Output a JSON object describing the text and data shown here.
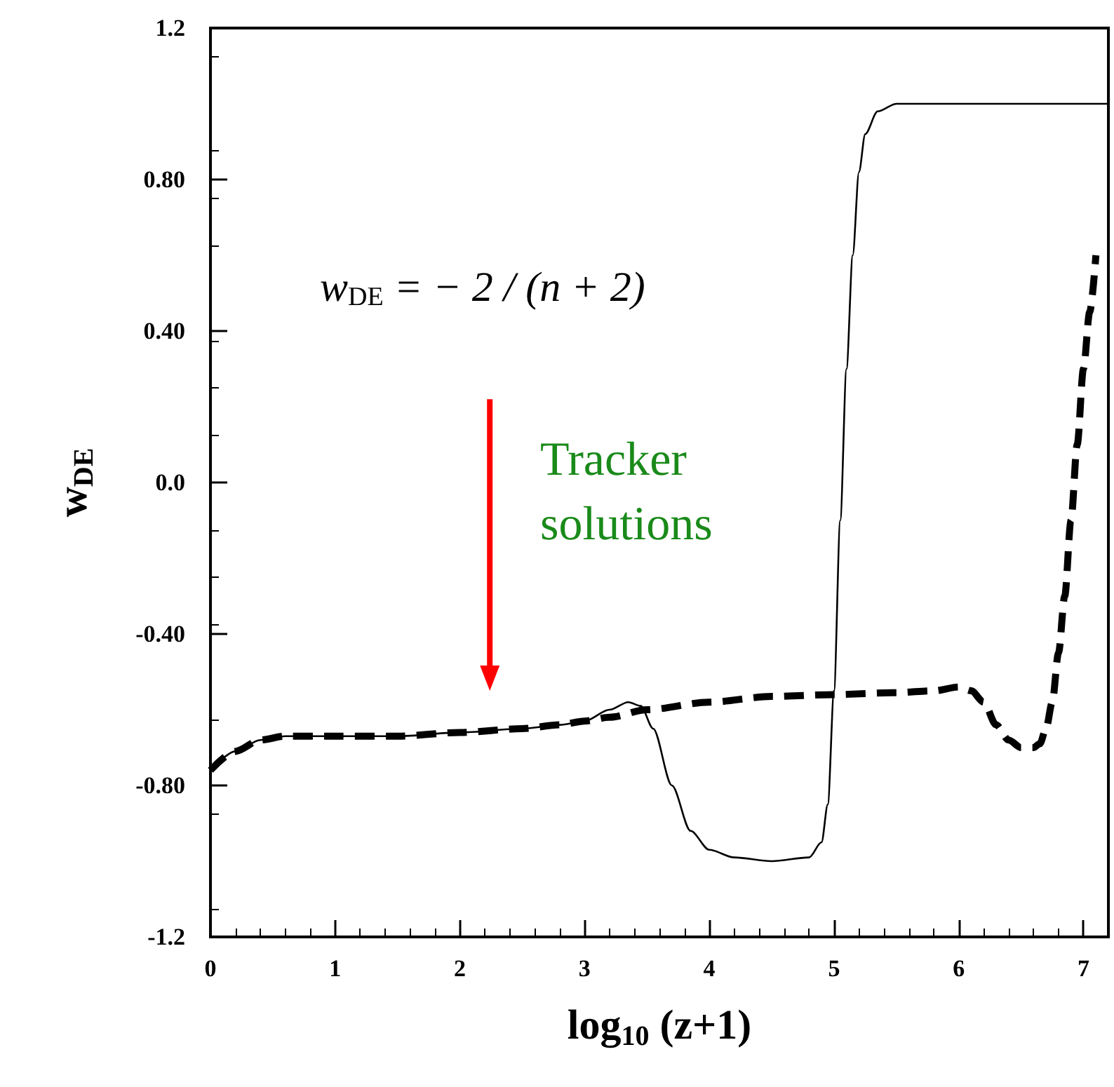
{
  "chart_data": {
    "type": "line",
    "xlabel": "log$_{10}$ (z+1)",
    "ylabel": "w$_{DE}$",
    "annotations": [
      "w$_{DE}$ = − 2 / (n + 2)",
      "Tracker solutions"
    ],
    "xlim": [
      0,
      7.2
    ],
    "xticks": [
      0,
      1,
      2,
      3,
      4,
      5,
      6,
      7
    ],
    "ylim": [
      -1.2,
      1.2
    ],
    "yticks": [
      {
        "value": -1.2,
        "label": "-1.2"
      },
      {
        "value": -0.8,
        "label": "-0.80"
      },
      {
        "value": -0.4,
        "label": "-0.40"
      },
      {
        "value": 0,
        "label": "0.0"
      },
      {
        "value": 0.4,
        "label": "0.40"
      },
      {
        "value": 0.8,
        "label": "0.80"
      },
      {
        "value": 1.2,
        "label": "1.2"
      }
    ],
    "grid": false,
    "marker": "none",
    "series": [
      {
        "color": "#000000",
        "line_style": "solid",
        "x": [
          0,
          0.2,
          0.4,
          0.6,
          1.0,
          1.5,
          2.0,
          2.5,
          2.8,
          3.0,
          3.2,
          3.35,
          3.45,
          3.55,
          3.7,
          3.85,
          4.0,
          4.2,
          4.5,
          4.8,
          4.9,
          4.95,
          5.0,
          5.05,
          5.1,
          5.15,
          5.2,
          5.25,
          5.35,
          5.5,
          5.7,
          6.0,
          6.5,
          7.0,
          7.2
        ],
        "values": [
          -0.76,
          -0.71,
          -0.68,
          -0.67,
          -0.67,
          -0.67,
          -0.66,
          -0.65,
          -0.64,
          -0.63,
          -0.6,
          -0.58,
          -0.59,
          -0.65,
          -0.8,
          -0.92,
          -0.97,
          -0.99,
          -1.0,
          -0.99,
          -0.95,
          -0.85,
          -0.55,
          -0.1,
          0.3,
          0.6,
          0.82,
          0.92,
          0.98,
          1.0,
          1.0,
          1.0,
          1.0,
          1.0,
          1.0
        ]
      },
      {
        "color": "#000000",
        "line_style": "dashed",
        "x": [
          0,
          0.2,
          0.4,
          0.6,
          1.0,
          1.5,
          2.0,
          2.5,
          2.8,
          3.0,
          3.2,
          3.5,
          4.0,
          4.5,
          5.0,
          5.5,
          5.8,
          6.0,
          6.1,
          6.2,
          6.3,
          6.4,
          6.5,
          6.6,
          6.65,
          6.7,
          6.75,
          6.8,
          6.85,
          6.9,
          6.95,
          7.0,
          7.05,
          7.1
        ],
        "values": [
          -0.76,
          -0.71,
          -0.68,
          -0.67,
          -0.67,
          -0.67,
          -0.66,
          -0.65,
          -0.64,
          -0.63,
          -0.62,
          -0.6,
          -0.58,
          -0.565,
          -0.56,
          -0.555,
          -0.55,
          -0.54,
          -0.55,
          -0.58,
          -0.64,
          -0.68,
          -0.7,
          -0.7,
          -0.69,
          -0.65,
          -0.58,
          -0.45,
          -0.3,
          -0.1,
          0.1,
          0.3,
          0.45,
          0.6
        ]
      }
    ]
  }
}
